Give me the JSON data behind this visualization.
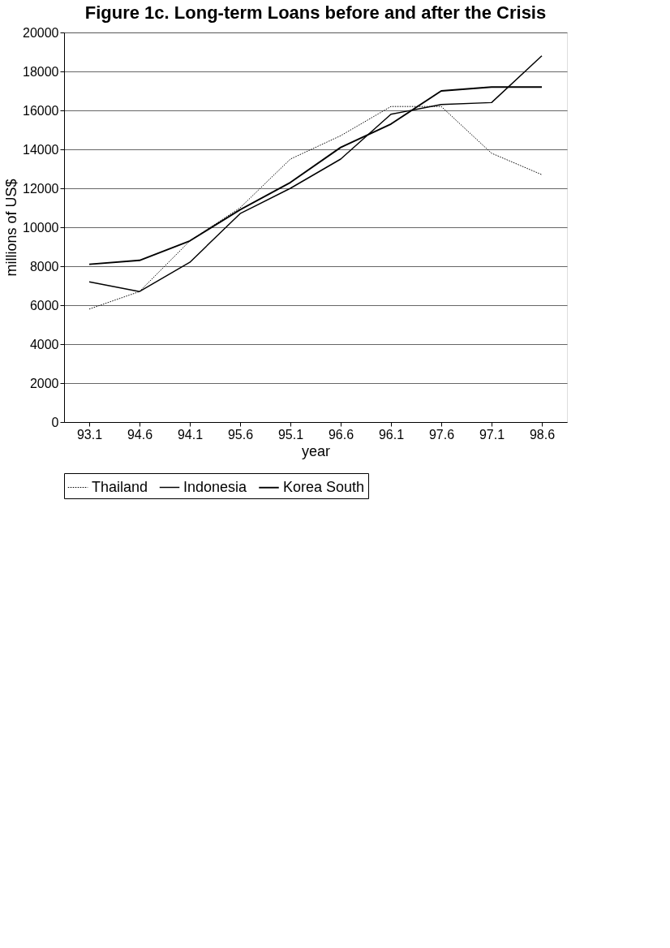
{
  "chart_data": {
    "type": "line",
    "title": "Figure 1c. Long-term Loans before and after the Crisis",
    "xlabel": "year",
    "ylabel": "millions of US$",
    "categories": [
      "93.1",
      "94.6",
      "94.1",
      "95.6",
      "95.1",
      "96.6",
      "96.1",
      "97.6",
      "97.1",
      "98.6"
    ],
    "series": [
      {
        "name": "Thailand",
        "color": "#000000",
        "line_style": "dotted",
        "values": [
          5800,
          6700,
          9300,
          11000,
          13500,
          14700,
          16200,
          16200,
          13800,
          12700
        ]
      },
      {
        "name": "Indonesia",
        "color": "#000000",
        "line_style": "solid",
        "values": [
          7200,
          6700,
          8200,
          10700,
          12000,
          13500,
          15800,
          16300,
          16400,
          18800
        ]
      },
      {
        "name": "Korea South",
        "color": "#000000",
        "line_style": "solid",
        "values": [
          8100,
          8300,
          9300,
          10900,
          12300,
          14100,
          15300,
          17000,
          17200,
          17200
        ]
      }
    ],
    "ylim": [
      0,
      20000
    ],
    "yticks": [
      0,
      2000,
      4000,
      6000,
      8000,
      10000,
      12000,
      14000,
      16000,
      18000,
      20000
    ],
    "grid": "y",
    "legend": "bottom",
    "marker": "none"
  }
}
